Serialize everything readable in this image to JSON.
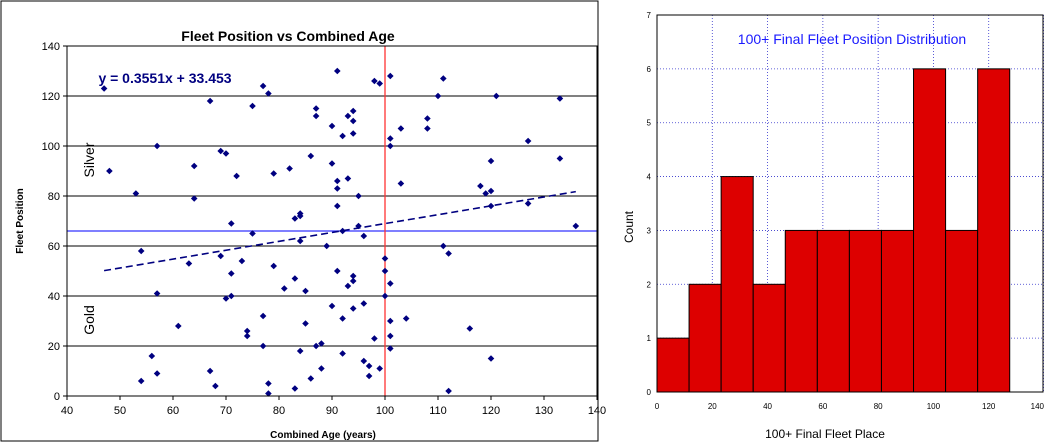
{
  "chart_data": [
    {
      "type": "scatter",
      "title": "Fleet Position vs Combined Age",
      "xlabel": "Combined Age  (years)",
      "ylabel": "Fleet Position",
      "xlim": [
        40,
        140
      ],
      "ylim": [
        0,
        140
      ],
      "xticks": [
        40,
        50,
        60,
        70,
        80,
        90,
        100,
        110,
        120,
        130,
        140
      ],
      "yticks": [
        0,
        20,
        40,
        60,
        80,
        100,
        120,
        140
      ],
      "grid": "horizontal",
      "legend": "none",
      "equation": "y = 0.3551x + 33.453",
      "trendline": {
        "slope": 0.3551,
        "intercept": 33.453,
        "x_from": 47,
        "x_to": 136
      },
      "reference_lines": {
        "horizontal_y": 66,
        "vertical_x": 100
      },
      "region_labels": [
        "Silver",
        "Gold"
      ],
      "colors": {
        "points": "#000080",
        "trend": "#000080",
        "hline": "#3333ff",
        "vline": "#ff3333"
      },
      "points": [
        [
          47,
          123
        ],
        [
          48,
          90
        ],
        [
          53,
          81
        ],
        [
          54,
          58
        ],
        [
          54,
          6
        ],
        [
          56,
          16
        ],
        [
          57,
          9
        ],
        [
          57,
          41
        ],
        [
          57,
          100
        ],
        [
          61,
          28
        ],
        [
          63,
          53
        ],
        [
          64,
          92
        ],
        [
          64,
          79
        ],
        [
          67,
          118
        ],
        [
          67,
          10
        ],
        [
          68,
          4
        ],
        [
          69,
          98
        ],
        [
          70,
          97
        ],
        [
          69,
          56
        ],
        [
          70,
          39
        ],
        [
          71,
          40
        ],
        [
          71,
          49
        ],
        [
          71,
          69
        ],
        [
          72,
          88
        ],
        [
          73,
          54
        ],
        [
          74,
          26
        ],
        [
          74,
          24
        ],
        [
          75,
          116
        ],
        [
          75,
          65
        ],
        [
          77,
          32
        ],
        [
          77,
          124
        ],
        [
          78,
          121
        ],
        [
          78,
          5
        ],
        [
          78,
          1
        ],
        [
          77,
          20
        ],
        [
          79,
          52
        ],
        [
          79,
          89
        ],
        [
          81,
          43
        ],
        [
          82,
          91
        ],
        [
          83,
          3
        ],
        [
          83,
          47
        ],
        [
          83,
          71
        ],
        [
          84,
          72
        ],
        [
          84,
          73
        ],
        [
          84,
          62
        ],
        [
          84,
          18
        ],
        [
          85,
          42
        ],
        [
          85,
          29
        ],
        [
          86,
          96
        ],
        [
          86,
          7
        ],
        [
          87,
          115
        ],
        [
          87,
          112
        ],
        [
          87,
          20
        ],
        [
          88,
          11
        ],
        [
          88,
          21
        ],
        [
          89,
          60
        ],
        [
          90,
          108
        ],
        [
          90,
          93
        ],
        [
          90,
          36
        ],
        [
          91,
          130
        ],
        [
          91,
          83
        ],
        [
          91,
          86
        ],
        [
          91,
          76
        ],
        [
          91,
          50
        ],
        [
          92,
          66
        ],
        [
          92,
          104
        ],
        [
          92,
          17
        ],
        [
          92,
          31
        ],
        [
          93,
          112
        ],
        [
          93,
          87
        ],
        [
          93,
          44
        ],
        [
          94,
          110
        ],
        [
          94,
          105
        ],
        [
          94,
          114
        ],
        [
          94,
          46
        ],
        [
          94,
          48
        ],
        [
          94,
          35
        ],
        [
          95,
          80
        ],
        [
          95,
          68
        ],
        [
          96,
          64
        ],
        [
          96,
          37
        ],
        [
          96,
          14
        ],
        [
          97,
          12
        ],
        [
          97,
          8
        ],
        [
          98,
          126
        ],
        [
          98,
          23
        ],
        [
          99,
          125
        ],
        [
          99,
          11
        ],
        [
          100,
          55
        ],
        [
          100,
          50
        ],
        [
          100,
          40
        ],
        [
          101,
          128
        ],
        [
          101,
          103
        ],
        [
          101,
          100
        ],
        [
          101,
          45
        ],
        [
          101,
          30
        ],
        [
          101,
          24
        ],
        [
          101,
          19
        ],
        [
          103,
          107
        ],
        [
          103,
          85
        ],
        [
          104,
          31
        ],
        [
          108,
          111
        ],
        [
          108,
          107
        ],
        [
          110,
          120
        ],
        [
          111,
          127
        ],
        [
          111,
          60
        ],
        [
          112,
          57
        ],
        [
          112,
          2
        ],
        [
          116,
          27
        ],
        [
          118,
          84
        ],
        [
          119,
          81
        ],
        [
          120,
          94
        ],
        [
          120,
          82
        ],
        [
          120,
          76
        ],
        [
          120,
          15
        ],
        [
          121,
          120
        ],
        [
          127,
          102
        ],
        [
          127,
          77
        ],
        [
          133,
          119
        ],
        [
          133,
          95
        ],
        [
          136,
          68
        ]
      ]
    },
    {
      "type": "bar",
      "title": "100+ Final Fleet Position Distribution",
      "xlabel": "100+ Final Fleet Place",
      "ylabel": "Count",
      "xlim": [
        0,
        140
      ],
      "ylim": [
        0,
        7
      ],
      "xticks": [
        0,
        20,
        40,
        60,
        80,
        100,
        120,
        140
      ],
      "yticks": [
        0,
        1,
        2,
        3,
        4,
        5,
        6,
        7
      ],
      "grid": "both",
      "legend": "none",
      "bin_edges": [
        0,
        11.6,
        23.2,
        34.8,
        46.4,
        58,
        69.6,
        81.2,
        92.8,
        104.4,
        116,
        127.6
      ],
      "values": [
        1,
        2,
        4,
        2,
        3,
        3,
        3,
        3,
        6,
        3,
        6
      ],
      "colors": {
        "bar": "#dd0000",
        "title": "#1a1aff",
        "grid": "#3333cc"
      }
    }
  ]
}
